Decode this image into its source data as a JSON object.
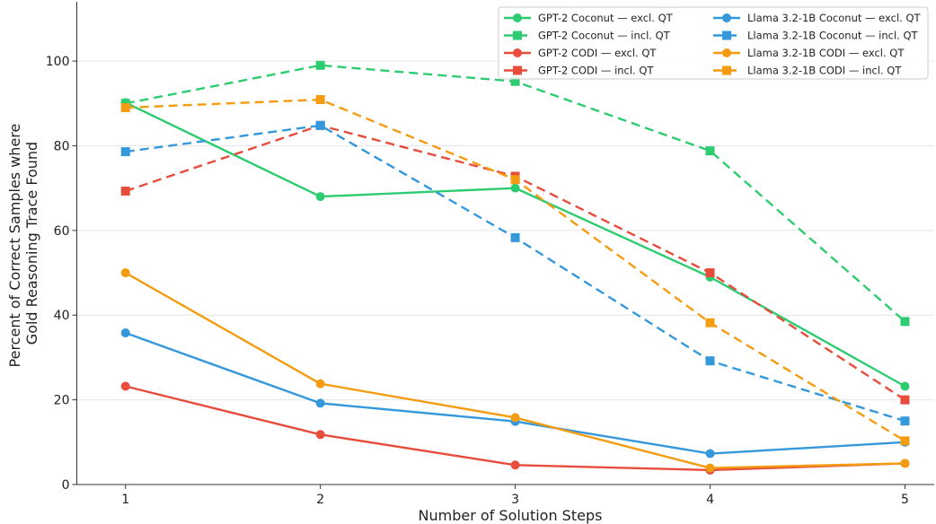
{
  "chart_data": {
    "type": "line",
    "title": "",
    "xlabel": "Number of Solution Steps",
    "ylabel_lines": [
      "Percent of Correct Samples where",
      "Gold Reasoning Trace Found"
    ],
    "x": [
      1,
      2,
      3,
      4,
      5
    ],
    "xlim": [
      0.75,
      5.15
    ],
    "ylim": [
      0,
      114
    ],
    "yticks": [
      0,
      20,
      40,
      60,
      80,
      100
    ],
    "grid": "horizontal",
    "legend_position": "top-right",
    "series": [
      {
        "name": "GPT-2 Coconut — excl. QT",
        "model": "GPT-2 Coconut",
        "variant": "excl. QT",
        "color": "#2ecc71",
        "linestyle": "solid",
        "marker": "circle",
        "values": [
          90.2,
          68.0,
          70.0,
          49.0,
          23.2
        ]
      },
      {
        "name": "GPT-2 Coconut — incl. QT",
        "model": "GPT-2 Coconut",
        "variant": "incl. QT",
        "color": "#2ecc71",
        "linestyle": "dashed",
        "marker": "square",
        "values": [
          90.0,
          99.0,
          95.2,
          78.8,
          38.5
        ]
      },
      {
        "name": "GPT-2 CODI — excl. QT",
        "model": "GPT-2 CODI",
        "variant": "excl. QT",
        "color": "#e74c3c",
        "linestyle": "solid",
        "marker": "circle",
        "values": [
          23.2,
          11.8,
          4.6,
          3.4,
          5.0
        ]
      },
      {
        "name": "GPT-2 CODI — incl. QT",
        "model": "GPT-2 CODI",
        "variant": "incl. QT",
        "color": "#e74c3c",
        "linestyle": "dashed",
        "marker": "square",
        "values": [
          69.3,
          84.8,
          72.8,
          50.0,
          20.0
        ]
      },
      {
        "name": "Llama 3.2-1B Coconut — excl. QT",
        "model": "Llama 3.2-1B Coconut",
        "variant": "excl. QT",
        "color": "#3498db",
        "linestyle": "solid",
        "marker": "circle",
        "values": [
          35.8,
          19.2,
          14.9,
          7.3,
          10.0
        ]
      },
      {
        "name": "Llama 3.2-1B Coconut — incl. QT",
        "model": "Llama 3.2-1B Coconut",
        "variant": "incl. QT",
        "color": "#3498db",
        "linestyle": "dashed",
        "marker": "square",
        "values": [
          78.6,
          84.8,
          58.3,
          29.2,
          15.0
        ]
      },
      {
        "name": "Llama 3.2-1B CODI — excl. QT",
        "model": "Llama 3.2-1B CODI",
        "variant": "excl. QT",
        "color": "#f39c12",
        "linestyle": "solid",
        "marker": "circle",
        "values": [
          50.0,
          23.8,
          15.8,
          3.9,
          5.0
        ]
      },
      {
        "name": "Llama 3.2-1B CODI — incl. QT",
        "model": "Llama 3.2-1B CODI",
        "variant": "incl. QT",
        "color": "#f39c12",
        "linestyle": "dashed",
        "marker": "square",
        "values": [
          89.0,
          90.9,
          72.0,
          38.2,
          10.3
        ]
      }
    ]
  }
}
